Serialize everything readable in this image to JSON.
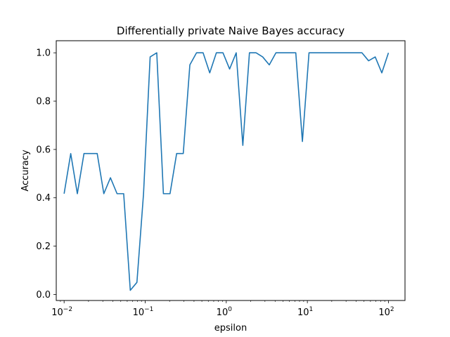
{
  "chart_data": {
    "type": "line",
    "title": "Differentially private Naive Bayes accuracy",
    "xlabel": "epsilon",
    "ylabel": "Accuracy",
    "xscale": "log",
    "xlim": [
      0.008,
      160
    ],
    "ylim": [
      -0.025,
      1.05
    ],
    "grid": false,
    "line_color": "#1f77b4",
    "x_ticks": [
      {
        "value": 0.01,
        "base": "10",
        "exp": "−2"
      },
      {
        "value": 0.1,
        "base": "10",
        "exp": "−1"
      },
      {
        "value": 1,
        "base": "10",
        "exp": "0"
      },
      {
        "value": 10,
        "base": "10",
        "exp": "1"
      },
      {
        "value": 100,
        "base": "10",
        "exp": "2"
      }
    ],
    "y_ticks": [
      {
        "value": 0.0,
        "label": "0.0"
      },
      {
        "value": 0.2,
        "label": "0.2"
      },
      {
        "value": 0.4,
        "label": "0.4"
      },
      {
        "value": 0.6,
        "label": "0.6"
      },
      {
        "value": 0.8,
        "label": "0.8"
      },
      {
        "value": 1.0,
        "label": "1.0"
      }
    ],
    "series": [
      {
        "x": [
          0.01,
          0.01207,
          0.01456,
          0.01758,
          0.02121,
          0.0256,
          0.03089,
          0.03728,
          0.04498,
          0.05429,
          0.06551,
          0.07906,
          0.09541,
          0.1151,
          0.1389,
          0.1677,
          0.2024,
          0.2442,
          0.2947,
          0.3556,
          0.4292,
          0.518,
          0.6251,
          0.7543,
          0.9103,
          1.099,
          1.326,
          1.6,
          1.931,
          2.33,
          2.812,
          3.393,
          4.095,
          4.942,
          5.964,
          7.197,
          8.685,
          10.48,
          12.65,
          15.26,
          18.42,
          22.23,
          26.83,
          32.37,
          39.07,
          47.15,
          56.9,
          68.66,
          82.86,
          100.0
        ],
        "y": [
          0.417,
          0.583,
          0.417,
          0.583,
          0.583,
          0.583,
          0.417,
          0.483,
          0.417,
          0.417,
          0.017,
          0.05,
          0.417,
          0.983,
          1.0,
          0.417,
          0.417,
          0.583,
          0.583,
          0.95,
          1.0,
          1.0,
          0.917,
          1.0,
          1.0,
          0.933,
          1.0,
          0.617,
          1.0,
          1.0,
          0.983,
          0.95,
          1.0,
          1.0,
          1.0,
          1.0,
          0.633,
          1.0,
          1.0,
          1.0,
          1.0,
          1.0,
          1.0,
          1.0,
          1.0,
          1.0,
          0.967,
          0.983,
          0.917,
          1.0
        ]
      }
    ]
  }
}
